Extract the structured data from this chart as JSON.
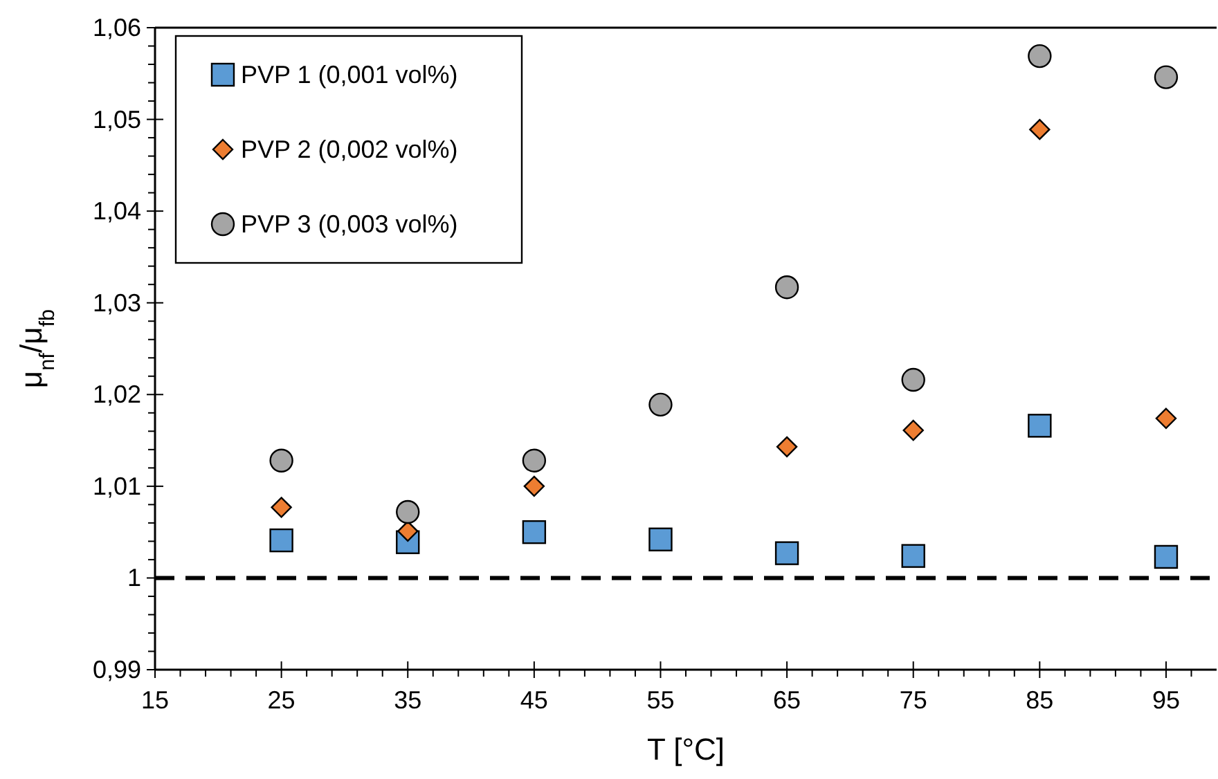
{
  "chart_data": {
    "type": "scatter",
    "xlabel": "T [°C]",
    "ylabel": "μ$_{nf}$/μ$_{fb}$",
    "x": [
      25,
      35,
      45,
      55,
      65,
      75,
      85,
      95
    ],
    "series": [
      {
        "name": "PVP 1 (0,001 vol%)",
        "color": "#5b9bd5",
        "marker": "square",
        "values": [
          1.0041,
          1.0039,
          1.005,
          1.0042,
          1.0027,
          1.0024,
          1.0166,
          1.0023
        ]
      },
      {
        "name": "PVP 2 (0,002 vol%)",
        "color": "#ed7d31",
        "marker": "diamond",
        "values": [
          1.0077,
          1.0051,
          1.01,
          null,
          1.0143,
          1.0161,
          1.0489,
          1.0174
        ]
      },
      {
        "name": "PVP 3 (0,003 vol%)",
        "color": "#a5a5a5",
        "marker": "circle",
        "values": [
          1.0128,
          1.0072,
          1.0128,
          1.0189,
          1.0317,
          1.0216,
          1.0569,
          1.0546
        ]
      }
    ],
    "xlim": [
      15,
      99
    ],
    "xticks": [
      15,
      25,
      35,
      45,
      55,
      65,
      75,
      85,
      95
    ],
    "ylim": [
      0.99,
      1.06
    ],
    "yticks": [
      {
        "value": 0.99,
        "label": "0,99"
      },
      {
        "value": 1,
        "label": "1"
      },
      {
        "value": 1.01,
        "label": "1,01"
      },
      {
        "value": 1.02,
        "label": "1,02"
      },
      {
        "value": 1.03,
        "label": "1,03"
      },
      {
        "value": 1.04,
        "label": "1,04"
      },
      {
        "value": 1.05,
        "label": "1,05"
      },
      {
        "value": 1.06,
        "label": "1,06"
      }
    ],
    "ref_lines": [
      {
        "axis": "y",
        "value": 1,
        "color": "#000000",
        "line_style": "dashed"
      }
    ],
    "grid": false,
    "legend": "top left"
  }
}
